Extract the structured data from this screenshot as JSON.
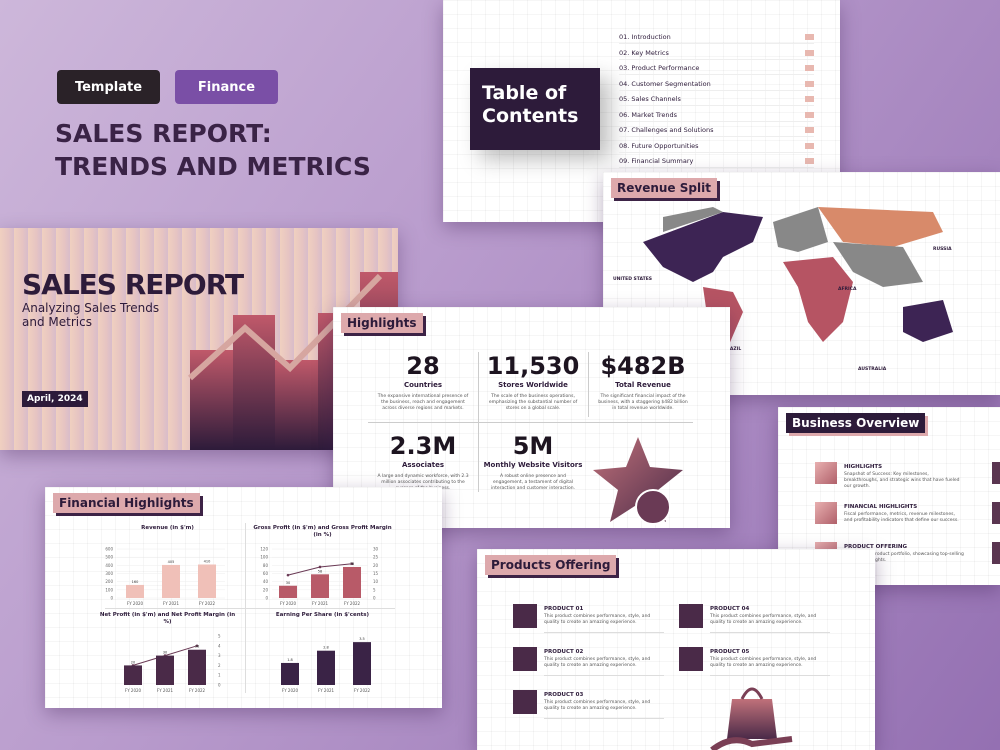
{
  "tags": [
    "Template",
    "Finance"
  ],
  "title": "SALES REPORT: TRENDS AND METRICS",
  "cover": {
    "title": "SALES REPORT",
    "subtitle": "Analyzing Sales Trends and Metrics",
    "date": "April, 2024"
  },
  "toc": {
    "title": "Table of Contents",
    "items": [
      "01. Introduction",
      "02. Key Metrics",
      "03. Product Performance",
      "04. Customer Segmentation",
      "05. Sales Channels",
      "06. Market Trends",
      "07. Challenges and Solutions",
      "08. Future Opportunities",
      "09. Financial Summary"
    ]
  },
  "revenue_split": {
    "title": "Revenue Split",
    "regions": [
      "UNITED STATES",
      "BRAZIL",
      "AFRICA",
      "RUSSIA",
      "AUSTRALIA"
    ]
  },
  "highlights": {
    "title": "Highlights",
    "stats": [
      {
        "value": "28",
        "label": "Countries",
        "text": "The expansive international presence of the business, reach and engagement across diverse regions and markets."
      },
      {
        "value": "11,530",
        "label": "Stores Worldwide",
        "text": "The scale of the business operations, emphasizing the substantial number of stores on a global scale."
      },
      {
        "value": "$482B",
        "label": "Total Revenue",
        "text": "The significant financial impact of the business, with a staggering $482 billion in total revenue worldwide."
      },
      {
        "value": "2.3M",
        "label": "Associates",
        "text": "A large and dynamic workforce, with 2.3 million associates contributing to the success of the business."
      },
      {
        "value": "5M",
        "label": "Monthly Website Visitors",
        "text": "A robust online presence and engagement, a testament of digital interaction and customer interaction."
      }
    ]
  },
  "business_overview": {
    "title": "Business Overview",
    "items": [
      {
        "title": "HIGHLIGHTS",
        "text": "Snapshot of Success: Key milestones, breakthroughs, and strategic wins that have fueled our growth."
      },
      {
        "title": "FINANCIAL HIGHLIGHTS",
        "text": "Fiscal performance, metrics, revenue milestones, and profitability indicators that define our success."
      },
      {
        "title": "PRODUCT OFFERING",
        "text": "Snapshot of product portfolio, showcasing top-selling product highlights."
      }
    ]
  },
  "financial_highlights": {
    "title": "Financial Highlights",
    "charts": [
      {
        "title": "Revenue (in $'m)",
        "categories": [
          "FY 2020",
          "FY 2021",
          "FY 2022"
        ],
        "values": [
          160,
          405,
          410
        ],
        "ylim": [
          0,
          600
        ],
        "yticks": [
          0,
          100,
          200,
          300,
          400,
          500,
          600
        ]
      },
      {
        "title": "Gross Profit (in $'m) and Gross Profit Margin (in %)",
        "categories": [
          "FY 2020",
          "FY 2021",
          "FY 2022"
        ],
        "values": [
          30,
          58,
          76
        ],
        "ylim": [
          0,
          120
        ],
        "yticks": [
          0,
          20,
          40,
          60,
          80,
          100,
          120
        ],
        "line": [
          14,
          19,
          21
        ],
        "y2lim": [
          0,
          30
        ],
        "y2ticks": [
          0,
          5,
          10,
          15,
          20,
          25,
          30
        ]
      },
      {
        "title": "Net Profit (in $'m) and Net Profit Margin (in %)",
        "categories": [
          "FY 2020",
          "FY 2021",
          "FY 2022"
        ],
        "values": [
          20,
          30,
          36
        ],
        "ylim": [
          0,
          50
        ],
        "line": [
          2,
          3,
          4
        ],
        "y2lim": [
          0,
          5
        ],
        "y2ticks": [
          0,
          1,
          2,
          3,
          4,
          5
        ]
      },
      {
        "title": "Earning Per Share (in $'cents)",
        "categories": [
          "FY 2020",
          "FY 2021",
          "FY 2022"
        ],
        "values": [
          1.8,
          2.8,
          3.5
        ],
        "ylim": [
          0,
          4
        ]
      }
    ]
  },
  "products": {
    "title": "Products Offering",
    "items": [
      {
        "name": "PRODUCT 01",
        "text": "This product combines performance, style, and quality to create an amazing experience."
      },
      {
        "name": "PRODUCT 02",
        "text": "This product combines performance, style, and quality to create an amazing experience."
      },
      {
        "name": "PRODUCT 03",
        "text": "This product combines performance, style, and quality to create an amazing experience."
      },
      {
        "name": "PRODUCT 04",
        "text": "This product combines performance, style, and quality to create an amazing experience."
      },
      {
        "name": "PRODUCT 05",
        "text": "This product combines performance, style, and quality to create an amazing experience."
      }
    ]
  }
}
